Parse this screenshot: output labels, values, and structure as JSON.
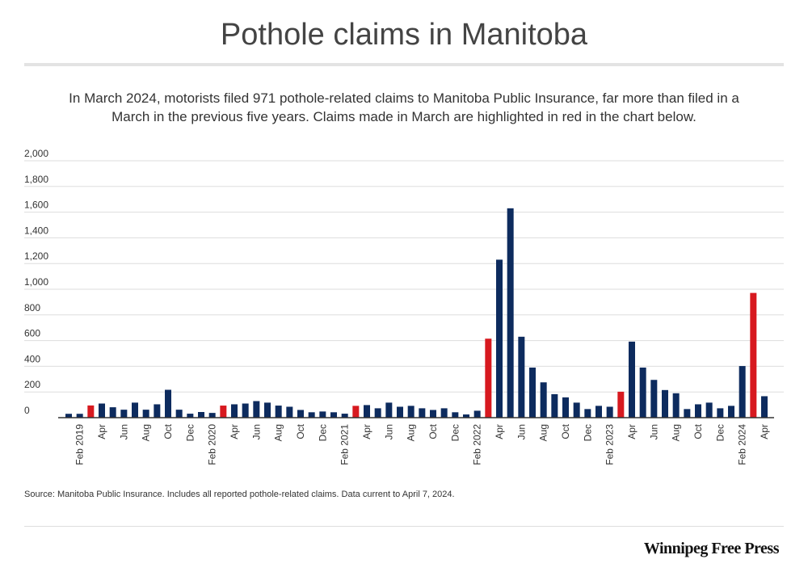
{
  "title": "Pothole claims in Manitoba",
  "subtitle": "In March 2024, motorists filed 971 pothole-related claims to Manitoba Public Insurance, far more than filed in a March in the previous five years. Claims made in March are highlighted in red in the chart below.",
  "source": "Source: Manitoba Public Insurance. Includes all reported pothole-related claims. Data current to April 7, 2024.",
  "logo": "Winnipeg Free Press",
  "colors": {
    "default": "#0d2b5e",
    "march": "#d7191f",
    "grid": "#dddddd",
    "axis": "#333333"
  },
  "chart_data": {
    "type": "bar",
    "title": "Pothole claims in Manitoba",
    "xlabel": "",
    "ylabel": "",
    "ylim": [
      0,
      2000
    ],
    "yticks": [
      0,
      200,
      400,
      600,
      800,
      1000,
      1200,
      1400,
      1600,
      1800,
      2000
    ],
    "ytick_labels": [
      "0",
      "200",
      "400",
      "600",
      "800",
      "1,000",
      "1,200",
      "1,400",
      "1,600",
      "1,800",
      "2,000"
    ],
    "grid": true,
    "categories": [
      "Jan 2019",
      "Feb 2019",
      "Mar 2019",
      "Apr 2019",
      "May 2019",
      "Jun 2019",
      "Jul 2019",
      "Aug 2019",
      "Sep 2019",
      "Oct 2019",
      "Nov 2019",
      "Dec 2019",
      "Jan 2020",
      "Feb 2020",
      "Mar 2020",
      "Apr 2020",
      "May 2020",
      "Jun 2020",
      "Jul 2020",
      "Aug 2020",
      "Sep 2020",
      "Oct 2020",
      "Nov 2020",
      "Dec 2020",
      "Jan 2021",
      "Feb 2021",
      "Mar 2021",
      "Apr 2021",
      "May 2021",
      "Jun 2021",
      "Jul 2021",
      "Aug 2021",
      "Sep 2021",
      "Oct 2021",
      "Nov 2021",
      "Dec 2021",
      "Jan 2022",
      "Feb 2022",
      "Mar 2022",
      "Apr 2022",
      "May 2022",
      "Jun 2022",
      "Jul 2022",
      "Aug 2022",
      "Sep 2022",
      "Oct 2022",
      "Nov 2022",
      "Dec 2022",
      "Jan 2023",
      "Feb 2023",
      "Mar 2023",
      "Apr 2023",
      "May 2023",
      "Jun 2023",
      "Jul 2023",
      "Aug 2023",
      "Sep 2023",
      "Oct 2023",
      "Nov 2023",
      "Dec 2023",
      "Jan 2024",
      "Feb 2024",
      "Mar 2024",
      "Apr 2024"
    ],
    "tick_labels": [
      "",
      "Feb 2019",
      "",
      "Apr",
      "",
      "Jun",
      "",
      "Aug",
      "",
      "Oct",
      "",
      "Dec",
      "",
      "Feb 2020",
      "",
      "Apr",
      "",
      "Jun",
      "",
      "Aug",
      "",
      "Oct",
      "",
      "Dec",
      "",
      "Feb 2021",
      "",
      "Apr",
      "",
      "Jun",
      "",
      "Aug",
      "",
      "Oct",
      "",
      "Dec",
      "",
      "Feb 2022",
      "",
      "Apr",
      "",
      "Jun",
      "",
      "Aug",
      "",
      "Oct",
      "",
      "Dec",
      "",
      "Feb 2023",
      "",
      "Apr",
      "",
      "Jun",
      "",
      "Aug",
      "",
      "Oct",
      "",
      "Dec",
      "",
      "Feb 2024",
      "",
      "Apr"
    ],
    "values": [
      30,
      30,
      95,
      110,
      81,
      62,
      117,
      62,
      104,
      217,
      62,
      31,
      44,
      37,
      94,
      104,
      110,
      129,
      117,
      94,
      85,
      60,
      42,
      48,
      42,
      31,
      92,
      98,
      73,
      117,
      85,
      92,
      73,
      60,
      73,
      42,
      25,
      54,
      615,
      1230,
      1630,
      630,
      390,
      275,
      183,
      158,
      117,
      67,
      92,
      85,
      202,
      592,
      390,
      294,
      215,
      190,
      67,
      104,
      117,
      73,
      92,
      402,
      971,
      167
    ],
    "highlight": "March"
  }
}
